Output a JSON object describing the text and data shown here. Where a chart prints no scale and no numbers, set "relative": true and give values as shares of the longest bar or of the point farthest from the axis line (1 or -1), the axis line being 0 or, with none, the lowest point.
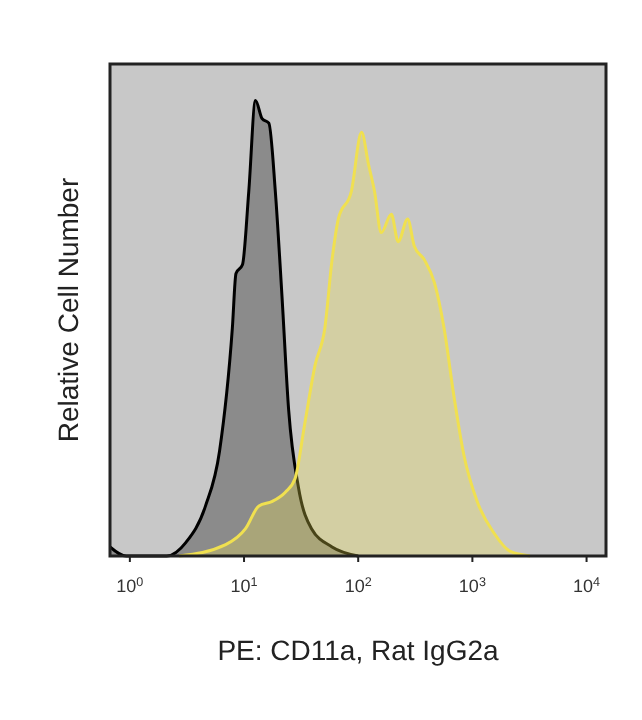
{
  "chart_data": {
    "type": "area",
    "xlabel": "PE: CD11a, Rat IgG2a",
    "ylabel": "Relative Cell Number",
    "relative": true,
    "log": "x",
    "xlim": [
      0.67,
      14800
    ],
    "xticks": [
      {
        "value": 1,
        "label": "10$^{0}$"
      },
      {
        "value": 10,
        "label": "10$^{1}$"
      },
      {
        "value": 100,
        "label": "10$^{2}$"
      },
      {
        "value": 1000,
        "label": "10$^{3}$"
      },
      {
        "value": 10000,
        "label": "10$^{4}$"
      }
    ],
    "tick_labels": "x",
    "grid": false,
    "series": [
      {
        "color": "#000000",
        "x": [
          0.67,
          0.93,
          2.1,
          3.1,
          4.6,
          6.1,
          7.9,
          8.5,
          9.7,
          11,
          12.6,
          14.4,
          16.5,
          18.8,
          21.5,
          24.6,
          30,
          39,
          59,
          100
        ],
        "values": [
          0.02,
          0,
          0,
          0.03,
          0.11,
          0.23,
          0.5,
          0.62,
          0.64,
          0.8,
          1,
          0.96,
          0.95,
          0.8,
          0.57,
          0.32,
          0.15,
          0.06,
          0.02,
          0
        ]
      },
      {
        "color": "#f0e050",
        "x": [
          2.7,
          6.9,
          10.3,
          13.5,
          17.7,
          23,
          28,
          34,
          42,
          51,
          59,
          67,
          87,
          107,
          123,
          139,
          159,
          195,
          224,
          271,
          310,
          380,
          465,
          565,
          690,
          845,
          1100,
          1550,
          2150,
          3200
        ],
        "values": [
          0,
          0.025,
          0.06,
          0.11,
          0.12,
          0.14,
          0.17,
          0.29,
          0.42,
          0.5,
          0.65,
          0.74,
          0.8,
          0.93,
          0.86,
          0.8,
          0.71,
          0.75,
          0.69,
          0.74,
          0.68,
          0.65,
          0.6,
          0.5,
          0.35,
          0.22,
          0.12,
          0.05,
          0.01,
          0
        ]
      }
    ]
  }
}
